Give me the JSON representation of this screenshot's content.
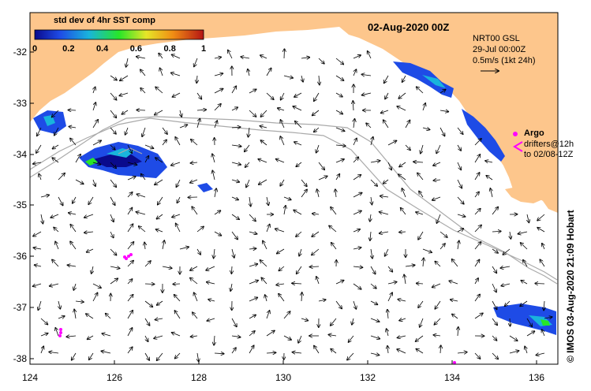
{
  "map": {
    "title": "02-Aug-2020 00Z",
    "lon_range": [
      124,
      136.5
    ],
    "lat_range": [
      -38.1,
      -31.4
    ],
    "x_ticks": [
      "124",
      "126",
      "128",
      "130",
      "132",
      "134",
      "136"
    ],
    "y_ticks": [
      "-32",
      "-33",
      "-34",
      "-35",
      "-36",
      "-37",
      "-38"
    ],
    "land_color": "#fdc68c",
    "ocean_color": "#ffffff"
  },
  "colorbar": {
    "title": "std dev of 4hr SST comp",
    "ticks": [
      "0",
      "0.2",
      "0.4",
      "0.6",
      "0.8",
      "1"
    ],
    "colors": [
      "#0a0a8c",
      "#1e4be6",
      "#19b4dc",
      "#28e628",
      "#e6e628",
      "#f08c14",
      "#b41414"
    ]
  },
  "info": {
    "line1": "NRT00 GSL",
    "line2": "29-Jul 00:00Z",
    "line3": "0.5m/s (1kt 24h)"
  },
  "argo": {
    "title": "Argo",
    "line2": "drifters@12h",
    "line3": "to 02/08-12Z",
    "color": "#ff00ff"
  },
  "credit": "© IMOS 03-Aug-2020 21:09 Hobart"
}
